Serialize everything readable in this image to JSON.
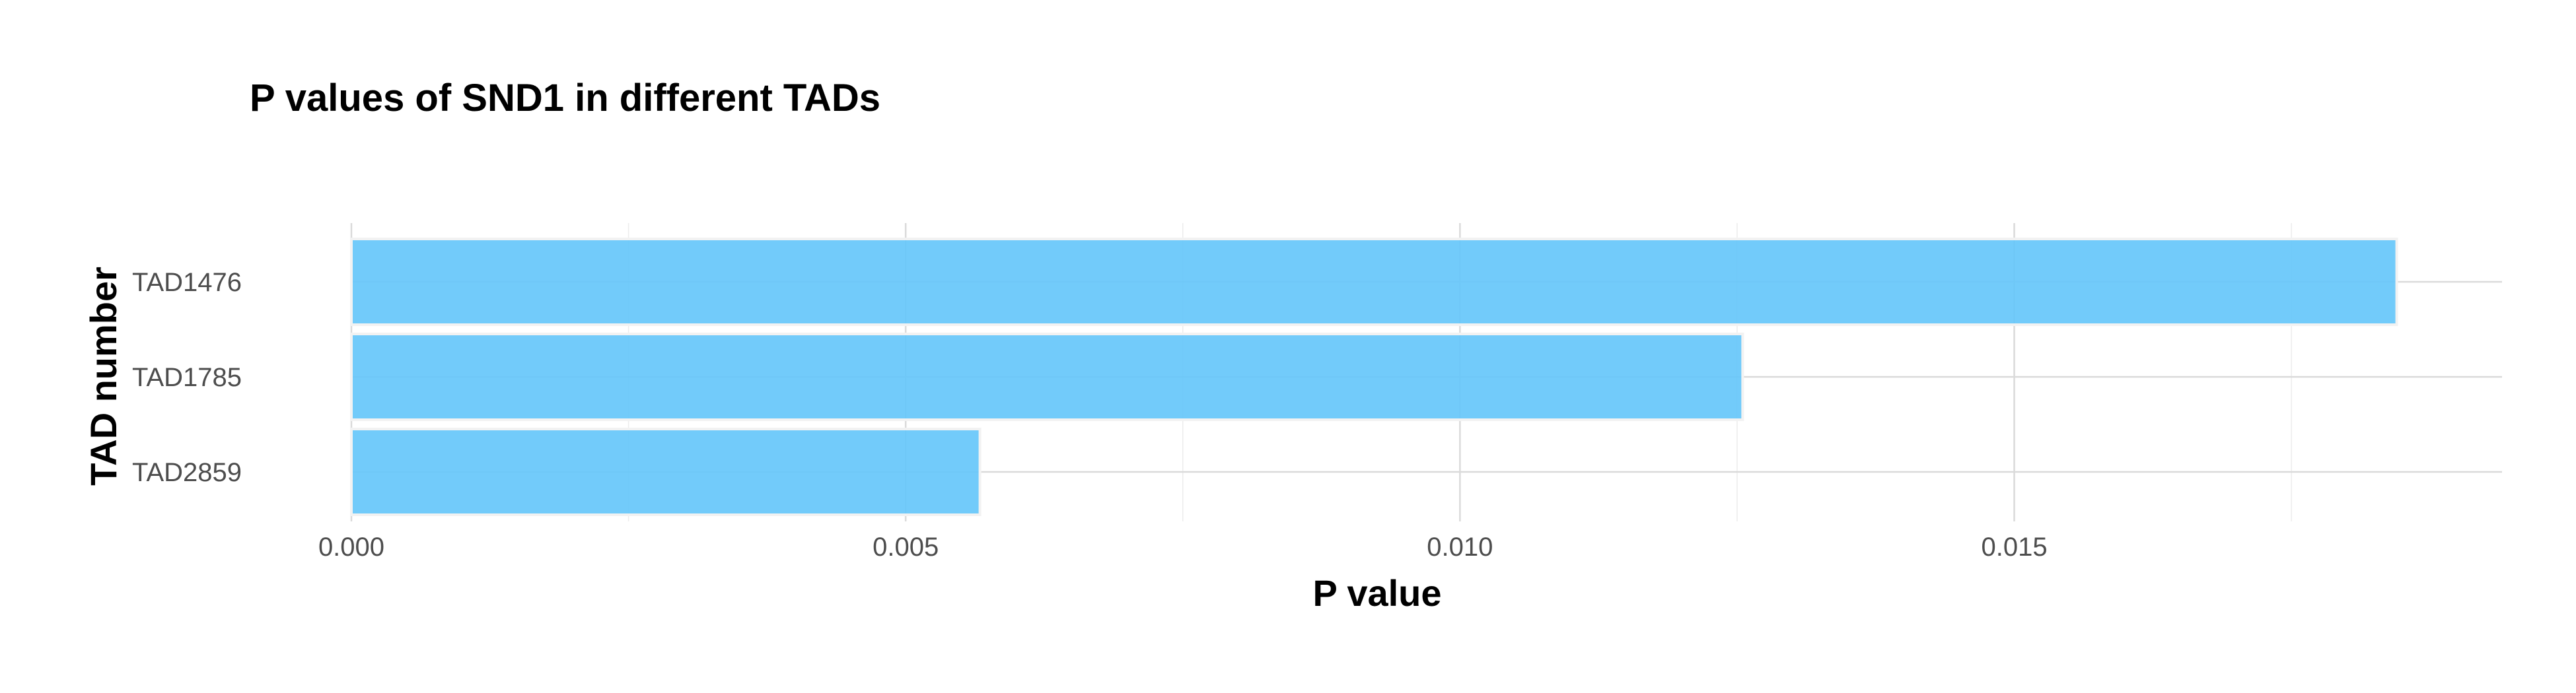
{
  "chart_data": {
    "type": "bar",
    "orientation": "horizontal",
    "title": "P values of SND1 in different TADs",
    "xlabel": "P value",
    "ylabel": "TAD number",
    "categories": [
      "TAD1476",
      "TAD1785",
      "TAD2859"
    ],
    "values": [
      0.01845,
      0.01255,
      0.00567
    ],
    "xlim": [
      0,
      0.0194
    ],
    "xticks": [
      0.0,
      0.005,
      0.01,
      0.015
    ],
    "xtick_labels": [
      "0.000",
      "0.005",
      "0.010",
      "0.015"
    ],
    "grid": true,
    "legend": "none",
    "bar_color": "#66c7fa"
  }
}
